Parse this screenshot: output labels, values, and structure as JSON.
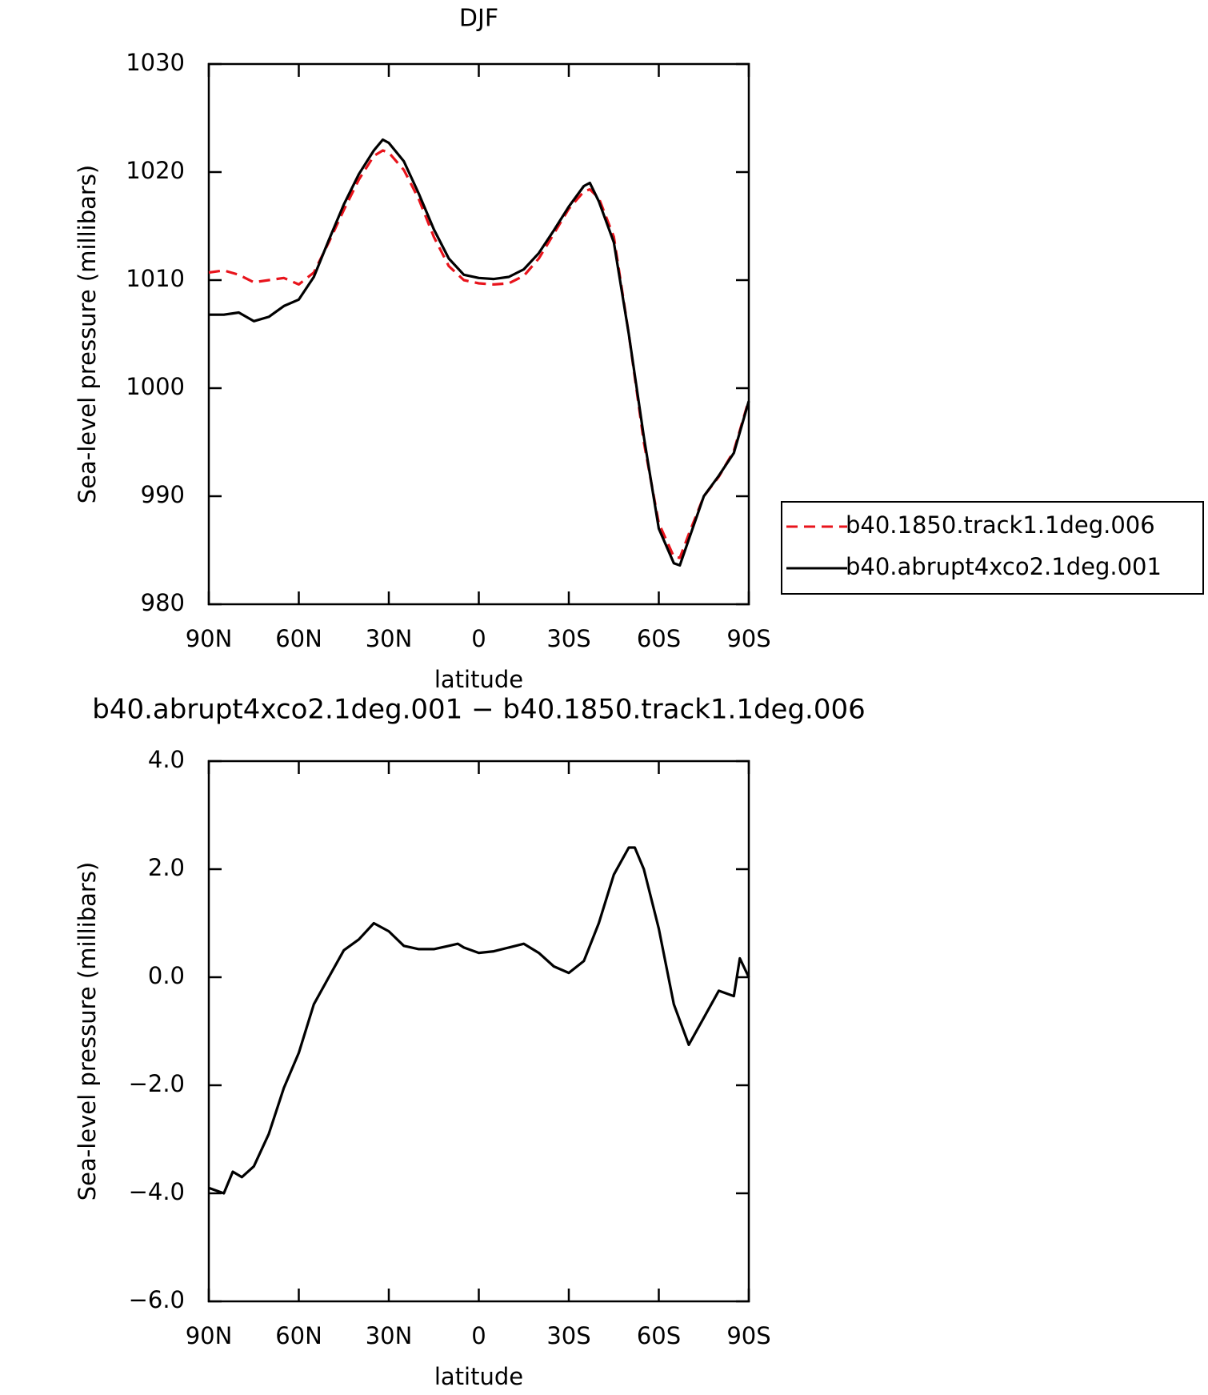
{
  "chart_data": [
    {
      "type": "line",
      "title": "DJF",
      "xlabel": "latitude",
      "ylabel": "Sea-level pressure (millibars)",
      "x": [
        90,
        85,
        80,
        75,
        70,
        65,
        60,
        55,
        50,
        45,
        40,
        35,
        32,
        30,
        25,
        20,
        15,
        10,
        5,
        0,
        -5,
        -10,
        -15,
        -20,
        -25,
        -30,
        -35,
        -37,
        -40,
        -45,
        -50,
        -55,
        -60,
        -65,
        -67,
        -70,
        -75,
        -80,
        -85,
        -90
      ],
      "series": [
        {
          "name": "b40.1850.track1.1deg.006",
          "color": "#e8141c",
          "dash": "dashed",
          "values": [
            1010.7,
            1010.9,
            1010.5,
            1009.8,
            1010,
            1010.2,
            1009.6,
            1010.7,
            1013.5,
            1016.5,
            1019.3,
            1021.5,
            1022,
            1021.8,
            1020.2,
            1017.5,
            1014,
            1011.3,
            1010,
            1009.7,
            1009.6,
            1009.7,
            1010.4,
            1012,
            1014.3,
            1016.6,
            1018.2,
            1018.4,
            1017.6,
            1014,
            1005,
            995,
            987.5,
            984.4,
            984.3,
            986.5,
            990,
            991.8,
            994.2,
            998.9
          ]
        },
        {
          "name": "b40.abrupt4xco2.1deg.001",
          "color": "#000000",
          "dash": "solid",
          "values": [
            1006.8,
            1006.8,
            1007.0,
            1006.2,
            1006.6,
            1007.6,
            1008.2,
            1010.3,
            1013.7,
            1017,
            1019.8,
            1022,
            1023,
            1022.7,
            1021,
            1018,
            1014.7,
            1012,
            1010.5,
            1010.2,
            1010.1,
            1010.3,
            1011,
            1012.5,
            1014.6,
            1016.8,
            1018.7,
            1019,
            1017.3,
            1013.5,
            1005,
            995.5,
            987,
            983.8,
            983.6,
            986,
            990,
            991.9,
            994,
            998.8
          ]
        }
      ],
      "xlim": [
        90,
        -90
      ],
      "xticks": [
        {
          "value": 90,
          "label": "90N"
        },
        {
          "value": 60,
          "label": "60N"
        },
        {
          "value": 30,
          "label": "30N"
        },
        0,
        {
          "value": -30,
          "label": "30S"
        },
        {
          "value": -60,
          "label": "60S"
        },
        {
          "value": -90,
          "label": "90S"
        }
      ],
      "ylim": [
        980,
        1030
      ],
      "yticks": [
        980,
        990,
        1000,
        1010,
        1020,
        1030
      ],
      "grid": false,
      "legend": "right"
    },
    {
      "type": "line",
      "title": "b40.abrupt4xco2.1deg.001 − b40.1850.track1.1deg.006",
      "xlabel": "latitude",
      "ylabel": "Sea-level pressure (millibars)",
      "x": [
        90,
        85,
        82,
        79,
        75,
        70,
        65,
        60,
        55,
        50,
        45,
        40,
        35,
        30,
        25,
        20,
        15,
        10,
        7,
        5,
        0,
        -5,
        -10,
        -15,
        -20,
        -25,
        -30,
        -35,
        -40,
        -45,
        -50,
        -52,
        -55,
        -60,
        -65,
        -70,
        -75,
        -80,
        -85,
        -87,
        -90
      ],
      "series": [
        {
          "color": "#000000",
          "dash": "solid",
          "values": [
            -3.9,
            -4.0,
            -3.6,
            -3.7,
            -3.5,
            -2.9,
            -2.05,
            -1.4,
            -0.5,
            0.0,
            0.5,
            0.7,
            1.0,
            0.85,
            0.58,
            0.52,
            0.52,
            0.58,
            0.62,
            0.55,
            0.45,
            0.48,
            0.55,
            0.62,
            0.45,
            0.2,
            0.08,
            0.3,
            1.0,
            1.9,
            2.4,
            2.4,
            2.0,
            0.9,
            -0.5,
            -1.25,
            -0.75,
            -0.25,
            -0.35,
            0.35,
            0.0
          ]
        }
      ],
      "xlim": [
        90,
        -90
      ],
      "xticks": [
        {
          "value": 90,
          "label": "90N"
        },
        {
          "value": 60,
          "label": "60N"
        },
        {
          "value": 30,
          "label": "30N"
        },
        0,
        {
          "value": -30,
          "label": "30S"
        },
        {
          "value": -60,
          "label": "60S"
        },
        {
          "value": -90,
          "label": "90S"
        }
      ],
      "ylim": [
        -6,
        4
      ],
      "yticks": [
        {
          "value": -6,
          "label": "−6.0"
        },
        {
          "value": -4,
          "label": "−4.0"
        },
        {
          "value": -2,
          "label": "−2.0"
        },
        {
          "value": 0,
          "label": "0.0"
        },
        {
          "value": 2,
          "label": "2.0"
        },
        {
          "value": 4,
          "label": "4.0"
        }
      ],
      "grid": false
    }
  ]
}
